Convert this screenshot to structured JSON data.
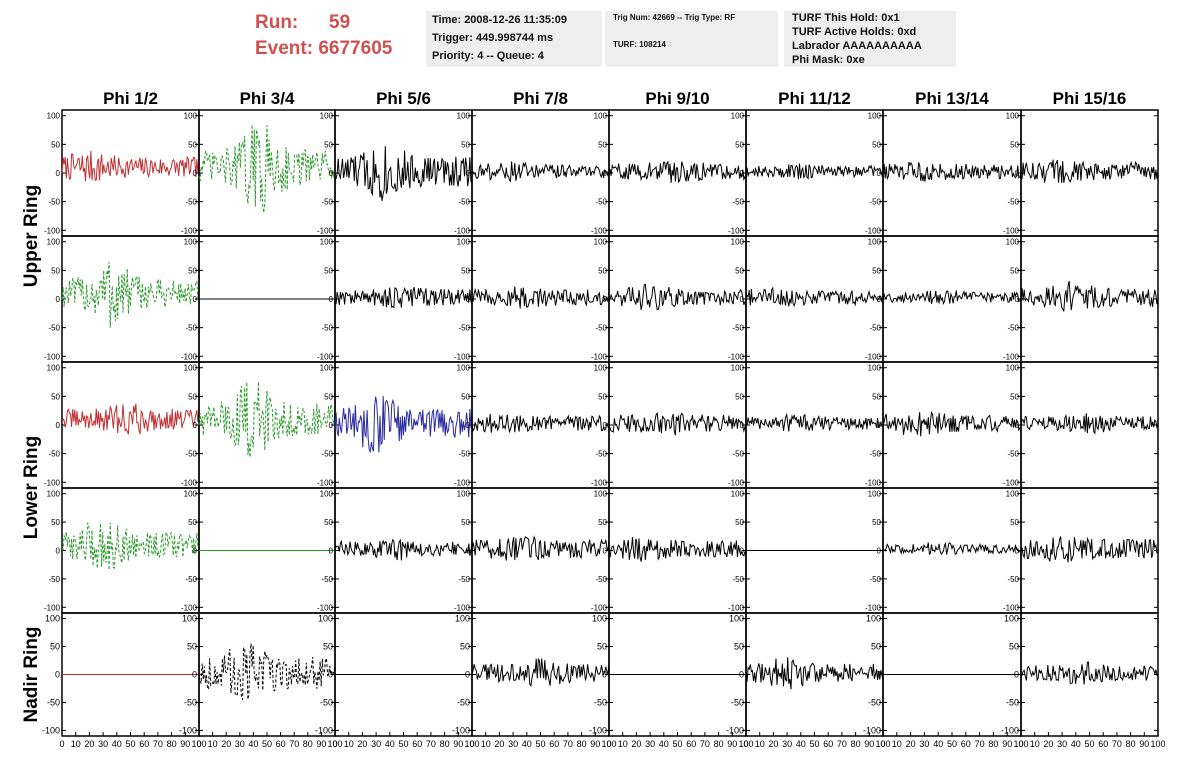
{
  "header": {
    "run_label": "Run:",
    "run_value": "59",
    "event_label": "Event:",
    "event_value": "6677605"
  },
  "info": {
    "time": "Time: 2008-12-26 11:35:09",
    "trigger": "Trigger: 449.998744 ms",
    "priority": "Priority: 4 -- Queue: 4",
    "trig_num": "Trig Num: 42669 -- Trig Type: RF",
    "turf": "TURF: 108214",
    "turf_hold": "TURF This Hold: 0x1",
    "turf_active": "TURF Active Holds: 0xd",
    "labrador": "Labrador AAAAAAAAAA",
    "phi_mask": "Phi Mask: 0xe"
  },
  "colors": {
    "red": "#c03030",
    "green": "#2a9a2a",
    "blue": "#2a2aa0",
    "black": "#000000",
    "title_red": "#d05050"
  },
  "chart_data": {
    "type": "line",
    "columns": [
      "Phi 1/2",
      "Phi 3/4",
      "Phi 5/6",
      "Phi 7/8",
      "Phi 9/10",
      "Phi 11/12",
      "Phi 13/14",
      "Phi 15/16"
    ],
    "rings": [
      "Upper Ring",
      "Lower Ring",
      "Nadir Ring"
    ],
    "xlim": [
      0,
      100
    ],
    "ylim": [
      -110,
      110
    ],
    "x_ticks": [
      "0",
      "10",
      "20",
      "30",
      "40",
      "50",
      "60",
      "70",
      "80",
      "90",
      "100"
    ],
    "y_ticks": [
      "100",
      "50",
      "0",
      "-50",
      "-100"
    ],
    "panels": [
      [
        {
          "color": "red",
          "style": "solid",
          "amp": 18,
          "burst": 12
        },
        {
          "color": "green",
          "style": "dashed",
          "amp": 30,
          "burst": 55
        },
        {
          "color": "black",
          "style": "solid",
          "amp": 28,
          "burst": 25
        },
        {
          "color": "black",
          "style": "solid",
          "amp": 12,
          "burst": 6
        },
        {
          "color": "black",
          "style": "solid",
          "amp": 14,
          "burst": 10
        },
        {
          "color": "black",
          "style": "solid",
          "amp": 10,
          "burst": 4
        },
        {
          "color": "black",
          "style": "solid",
          "amp": 13,
          "burst": 6
        },
        {
          "color": "black",
          "style": "solid",
          "amp": 16,
          "burst": 8
        }
      ],
      [
        {
          "color": "green",
          "style": "dashed",
          "amp": 25,
          "burst": 45
        },
        {
          "color": "black",
          "style": "solid",
          "amp": 0,
          "burst": 0
        },
        {
          "color": "black",
          "style": "solid",
          "amp": 14,
          "burst": 8
        },
        {
          "color": "black",
          "style": "solid",
          "amp": 14,
          "burst": 8
        },
        {
          "color": "black",
          "style": "solid",
          "amp": 14,
          "burst": 10
        },
        {
          "color": "black",
          "style": "solid",
          "amp": 13,
          "burst": 6
        },
        {
          "color": "black",
          "style": "solid",
          "amp": 9,
          "burst": 4
        },
        {
          "color": "black",
          "style": "solid",
          "amp": 17,
          "burst": 12
        }
      ],
      [
        {
          "color": "red",
          "style": "solid",
          "amp": 18,
          "burst": 12
        },
        {
          "color": "green",
          "style": "dashed",
          "amp": 28,
          "burst": 45
        },
        {
          "color": "blue",
          "style": "solid",
          "amp": 25,
          "burst": 30
        },
        {
          "color": "black",
          "style": "solid",
          "amp": 13,
          "burst": 6
        },
        {
          "color": "black",
          "style": "solid",
          "amp": 15,
          "burst": 8
        },
        {
          "color": "black",
          "style": "solid",
          "amp": 11,
          "burst": 6
        },
        {
          "color": "black",
          "style": "solid",
          "amp": 15,
          "burst": 12
        },
        {
          "color": "black",
          "style": "solid",
          "amp": 12,
          "burst": 6
        }
      ],
      [
        {
          "color": "green",
          "style": "dashed",
          "amp": 22,
          "burst": 30
        },
        {
          "color": "green",
          "style": "solid",
          "amp": 0,
          "burst": 0
        },
        {
          "color": "black",
          "style": "solid",
          "amp": 13,
          "burst": 8
        },
        {
          "color": "black",
          "style": "solid",
          "amp": 16,
          "burst": 8
        },
        {
          "color": "black",
          "style": "solid",
          "amp": 15,
          "burst": 8
        },
        {
          "color": "black",
          "style": "solid",
          "amp": 0,
          "burst": 0
        },
        {
          "color": "black",
          "style": "solid",
          "amp": 8,
          "burst": 4
        },
        {
          "color": "black",
          "style": "solid",
          "amp": 17,
          "burst": 8
        }
      ],
      [
        {
          "color": "red",
          "style": "solid",
          "amp": 0,
          "burst": 0
        },
        {
          "color": "black",
          "style": "dashed",
          "amp": 30,
          "burst": 25
        },
        {
          "color": "black",
          "style": "solid",
          "amp": 0,
          "burst": 0
        },
        {
          "color": "black",
          "style": "solid",
          "amp": 16,
          "burst": 12
        },
        {
          "color": "black",
          "style": "solid",
          "amp": 0,
          "burst": 0
        },
        {
          "color": "black",
          "style": "solid",
          "amp": 16,
          "burst": 14
        },
        {
          "color": "black",
          "style": "solid",
          "amp": 0,
          "burst": 0
        },
        {
          "color": "black",
          "style": "solid",
          "amp": 14,
          "burst": 8
        }
      ]
    ]
  }
}
